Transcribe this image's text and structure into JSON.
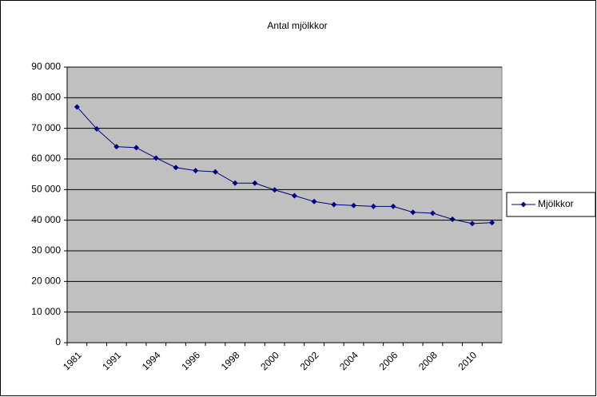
{
  "chart_data": {
    "type": "line",
    "title": "Antal mjölkkor",
    "categories": [
      "1981",
      null,
      "1991",
      null,
      "1994",
      null,
      "1996",
      null,
      "1998",
      null,
      "2000",
      null,
      "2002",
      null,
      "2004",
      null,
      "2006",
      null,
      "2008",
      null,
      "2010",
      null
    ],
    "series": [
      {
        "name": "Mjölkkor",
        "color": "#000080",
        "values": [
          77000,
          69800,
          64000,
          63700,
          60300,
          57200,
          56200,
          55800,
          52100,
          52100,
          49900,
          48000,
          46100,
          45100,
          44800,
          44500,
          44500,
          42600,
          42300,
          40300,
          38900,
          39200
        ]
      }
    ],
    "ylim": [
      0,
      90000
    ],
    "yticks": [
      0,
      {
        "value": 10000,
        "label": "10 000"
      },
      {
        "value": 20000,
        "label": "20 000"
      },
      {
        "value": 30000,
        "label": "30 000"
      },
      {
        "value": 40000,
        "label": "40 000"
      },
      {
        "value": 50000,
        "label": "50 000"
      },
      {
        "value": 60000,
        "label": "60 000"
      },
      {
        "value": 70000,
        "label": "70 000"
      },
      {
        "value": 80000,
        "label": "80 000"
      },
      {
        "value": 90000,
        "label": "90 000"
      }
    ],
    "grid": true,
    "legend": "right"
  }
}
